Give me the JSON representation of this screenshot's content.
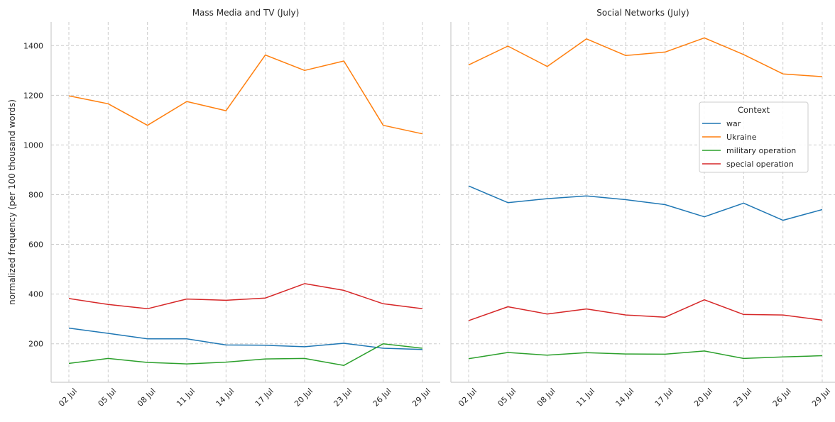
{
  "chart_data": [
    {
      "type": "line",
      "title": "Mass Media and TV (July)",
      "xlabel": "",
      "ylabel": "normalized frequency (per 100 thousand words)",
      "ylim": [
        45,
        1495
      ],
      "yticks": [
        200,
        400,
        600,
        800,
        1000,
        1200,
        1400
      ],
      "grid": true,
      "categories": [
        "02 Jul",
        "05 Jul",
        "08 Jul",
        "11 Jul",
        "14 Jul",
        "17 Jul",
        "20 Jul",
        "23 Jul",
        "26 Jul",
        "29 Jul"
      ],
      "series": [
        {
          "name": "war",
          "color": "#1f77b4",
          "values": [
            263,
            242,
            220,
            220,
            195,
            194,
            188,
            202,
            182,
            177
          ]
        },
        {
          "name": "Ukraine",
          "color": "#ff7f0e",
          "values": [
            1198,
            1166,
            1079,
            1175,
            1138,
            1362,
            1300,
            1338,
            1079,
            1045
          ]
        },
        {
          "name": "military operation",
          "color": "#2ca02c",
          "values": [
            121,
            141,
            125,
            119,
            126,
            139,
            141,
            113,
            200,
            182
          ]
        },
        {
          "name": "special operation",
          "color": "#d62728",
          "values": [
            382,
            358,
            341,
            380,
            375,
            384,
            442,
            415,
            361,
            341
          ]
        }
      ]
    },
    {
      "type": "line",
      "title": "Social Networks (July)",
      "xlabel": "",
      "ylabel": "",
      "ylim": [
        45,
        1495
      ],
      "grid": true,
      "legend": {
        "title": "Context",
        "placement": "center-right"
      },
      "categories": [
        "02 Jul",
        "05 Jul",
        "08 Jul",
        "11 Jul",
        "14 Jul",
        "17 Jul",
        "20 Jul",
        "23 Jul",
        "26 Jul",
        "29 Jul"
      ],
      "series": [
        {
          "name": "war",
          "color": "#1f77b4",
          "values": [
            835,
            768,
            784,
            795,
            780,
            760,
            711,
            766,
            697,
            740
          ]
        },
        {
          "name": "Ukraine",
          "color": "#ff7f0e",
          "values": [
            1322,
            1398,
            1316,
            1427,
            1360,
            1374,
            1431,
            1364,
            1286,
            1275
          ]
        },
        {
          "name": "military operation",
          "color": "#2ca02c",
          "values": [
            140,
            165,
            154,
            164,
            159,
            158,
            171,
            141,
            147,
            152
          ]
        },
        {
          "name": "special operation",
          "color": "#d62728",
          "values": [
            293,
            349,
            320,
            340,
            316,
            307,
            377,
            318,
            316,
            295
          ]
        }
      ]
    }
  ]
}
